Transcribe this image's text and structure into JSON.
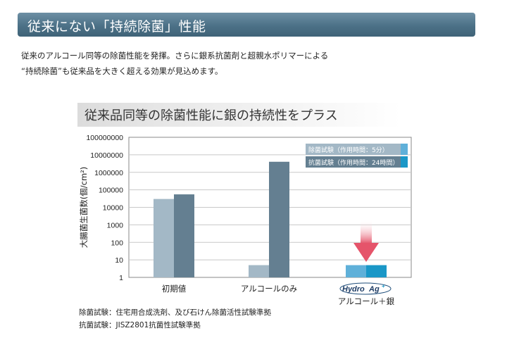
{
  "header": {
    "title": "従来にない「持続除菌」性能"
  },
  "intro": {
    "line1": "従来のアルコール同等の除菌性能を発揮。さらに銀系抗菌剤と超親水ポリマーによる",
    "line2": "“持続除菌”も従来品を大きく超える効果が見込めます。"
  },
  "chart_data": {
    "type": "bar",
    "title": "従来品同等の除菌性能に銀の持続性をプラス",
    "ylabel": "大腸菌生菌数(個/cm²)",
    "xlabel": "",
    "yscale": "log",
    "ylim": [
      1,
      100000000
    ],
    "yticks": [
      "1",
      "10",
      "100",
      "1000",
      "10000",
      "100000",
      "1000000",
      "10000000",
      "100000000"
    ],
    "categories": [
      "初期値",
      "アルコールのみ",
      "アルコール＋銀"
    ],
    "category_logo": {
      "brand": "Hydro",
      "mark": "Ag",
      "plus": "+"
    },
    "series": [
      {
        "name": "除菌試験（作用時間：5分）",
        "values": [
          30000,
          5,
          5
        ],
        "color": "#a3b8c6"
      },
      {
        "name": "抗菌試験（作用時間：24時間）",
        "values": [
          55000,
          4000000,
          5
        ],
        "color": "#647f91"
      }
    ],
    "highlight_colors": [
      "#5fb0d9",
      "#1a97c7"
    ],
    "arrow_color": "#e5546a",
    "plot_bg": "#ffffff",
    "grid": true,
    "legend_position": "top-right"
  },
  "notes": {
    "line1": "除菌試験：住宅用合成洗剤、及び石けん除菌活性試験準拠",
    "line2": "抗菌試験：JISZ2801抗菌性試験準拠"
  }
}
